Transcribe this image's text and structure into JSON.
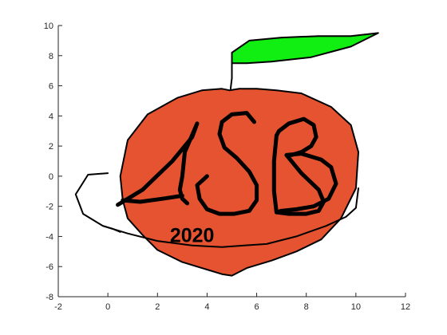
{
  "chart_data": {
    "type": "line",
    "title": "",
    "xlabel": "",
    "ylabel": "",
    "xlim": [
      -2,
      12
    ],
    "ylim": [
      -8,
      10
    ],
    "x_ticks": [
      "-2",
      "0",
      "2",
      "4",
      "6",
      "8",
      "10",
      "12"
    ],
    "y_ticks": [
      "-8",
      "-6",
      "-4",
      "-2",
      "0",
      "2",
      "4",
      "6",
      "8",
      "10"
    ],
    "x_tick_values": [
      -2,
      0,
      2,
      4,
      6,
      8,
      10,
      12
    ],
    "y_tick_values": [
      -8,
      -6,
      -4,
      -2,
      0,
      2,
      4,
      6,
      8,
      10
    ],
    "grid": false,
    "legend": "none",
    "colors": {
      "apple": "#e55330",
      "leaf": "#11ee11",
      "outline": "#000000",
      "axis": "#262626"
    },
    "annotation": {
      "text": "2020",
      "x": 2.5,
      "y": -3.9
    },
    "shapes": [
      {
        "name": "apple-body",
        "fill": "#e55330",
        "x": [
          4.9,
          5.3,
          6.0,
          6.8,
          7.8,
          9.0,
          9.8,
          10.1,
          10.0,
          9.4,
          8.6,
          7.6,
          6.6,
          5.6,
          5.0,
          4.6,
          4.0,
          3.0,
          2.0,
          1.4,
          0.8,
          0.6,
          0.5,
          0.8,
          1.6,
          2.8,
          3.8,
          4.6,
          4.9
        ],
        "y": [
          5.7,
          5.8,
          5.8,
          5.7,
          5.5,
          4.6,
          3.4,
          1.6,
          -0.8,
          -2.8,
          -4.2,
          -5.0,
          -5.6,
          -6.1,
          -6.6,
          -6.5,
          -6.2,
          -5.7,
          -4.9,
          -3.9,
          -2.8,
          -1.6,
          0.0,
          2.4,
          4.1,
          5.2,
          5.7,
          5.8,
          5.7
        ]
      },
      {
        "name": "leaf",
        "fill": "#11ee11",
        "x": [
          5.0,
          5.0,
          5.7,
          7.0,
          8.5,
          9.8,
          10.9,
          9.8,
          8.2,
          6.6,
          5.6,
          5.0
        ],
        "y": [
          7.5,
          8.2,
          9.0,
          9.2,
          9.3,
          9.3,
          9.5,
          8.6,
          7.9,
          7.6,
          7.5,
          7.5
        ]
      }
    ],
    "series": [
      {
        "name": "apple-outline",
        "linewidth": 2,
        "x": [
          4.9,
          5.3,
          6.0,
          6.8,
          7.8,
          9.0,
          9.8,
          10.1,
          10.0,
          9.4,
          8.6,
          7.6,
          6.6,
          5.6,
          5.0,
          4.6,
          4.0,
          3.0,
          2.0,
          1.4,
          0.8,
          0.6,
          0.5,
          0.8,
          1.6,
          2.8,
          3.8,
          4.6,
          4.9
        ],
        "y": [
          5.7,
          5.8,
          5.8,
          5.7,
          5.5,
          4.6,
          3.4,
          1.6,
          -0.8,
          -2.8,
          -4.2,
          -5.0,
          -5.6,
          -6.1,
          -6.6,
          -6.5,
          -6.2,
          -5.7,
          -4.9,
          -3.9,
          -2.8,
          -1.6,
          0.0,
          2.4,
          4.1,
          5.2,
          5.7,
          5.8,
          5.7
        ]
      },
      {
        "name": "leaf-outline",
        "linewidth": 2,
        "x": [
          5.0,
          5.0,
          5.7,
          7.0,
          8.5,
          9.8,
          10.9,
          9.8,
          8.2,
          6.6,
          5.6,
          5.0
        ],
        "y": [
          7.5,
          8.2,
          9.0,
          9.2,
          9.3,
          9.3,
          9.5,
          8.6,
          7.9,
          7.6,
          7.5,
          7.5
        ]
      },
      {
        "name": "stem",
        "linewidth": 2,
        "x": [
          4.95,
          5.0,
          5.0,
          5.0
        ],
        "y": [
          5.8,
          6.5,
          7.0,
          7.5
        ]
      },
      {
        "name": "orbit-ring",
        "linewidth": 2,
        "x": [
          0.0,
          -0.8,
          -1.3,
          -1.0,
          -0.2,
          0.8,
          2.0,
          3.4,
          4.6,
          5.5,
          6.4,
          7.6,
          8.8,
          9.6,
          10.0,
          10.1
        ],
        "y": [
          0.2,
          0.1,
          -1.2,
          -2.5,
          -3.3,
          -3.8,
          -4.3,
          -4.6,
          -4.7,
          -4.6,
          -4.5,
          -4.0,
          -3.3,
          -2.7,
          -2.1,
          -0.8
        ]
      },
      {
        "name": "orbit-ring-tail",
        "linewidth": 2,
        "x": [
          -0.2,
          0.2,
          0.5
        ],
        "y": [
          -3.3,
          -3.5,
          -3.7
        ]
      },
      {
        "name": "letter-a",
        "linewidth": 5,
        "x": [
          0.4,
          1.4,
          2.6,
          3.4,
          3.6,
          3.1,
          3.0,
          2.9,
          3.0,
          3.2
        ],
        "y": [
          -1.9,
          -0.9,
          1.0,
          2.6,
          3.5,
          1.6,
          0.0,
          -0.9,
          -1.5,
          -1.8
        ]
      },
      {
        "name": "letter-a-crossbar",
        "linewidth": 5,
        "x": [
          0.6,
          1.3,
          2.2,
          3.0
        ],
        "y": [
          -1.6,
          -1.7,
          -1.5,
          -1.3
        ]
      },
      {
        "name": "letter-s",
        "linewidth": 5,
        "x": [
          5.9,
          5.6,
          5.0,
          4.6,
          4.5,
          4.7,
          5.2,
          5.7,
          6.0,
          6.0,
          5.7,
          5.1,
          4.5,
          4.0,
          3.7,
          3.6,
          4.0
        ],
        "y": [
          3.6,
          4.2,
          4.1,
          3.6,
          2.8,
          1.9,
          1.2,
          0.3,
          -0.6,
          -1.6,
          -2.3,
          -2.5,
          -2.5,
          -2.2,
          -1.5,
          -0.6,
          0.0
        ]
      },
      {
        "name": "letter-b",
        "linewidth": 5,
        "x": [
          6.8,
          6.7,
          6.7,
          6.8,
          7.3,
          8.0,
          8.5,
          8.7,
          8.5,
          7.8,
          7.2,
          7.8,
          8.6,
          9.0,
          9.2,
          8.9,
          8.3,
          7.6,
          7.0,
          6.8
        ],
        "y": [
          2.7,
          1.0,
          -1.0,
          -2.4,
          -2.5,
          -2.5,
          -2.3,
          -1.7,
          -0.9,
          0.2,
          1.4,
          1.5,
          1.1,
          0.6,
          -0.5,
          -1.5,
          -2.0,
          -2.2,
          -2.3,
          -2.4
        ]
      },
      {
        "name": "letter-b-top",
        "linewidth": 5,
        "x": [
          6.8,
          6.9,
          7.3,
          7.9,
          8.3,
          8.4,
          8.2,
          7.8,
          7.4
        ],
        "y": [
          2.7,
          3.0,
          3.5,
          3.8,
          3.4,
          2.6,
          2.0,
          1.6,
          1.4
        ]
      }
    ]
  }
}
